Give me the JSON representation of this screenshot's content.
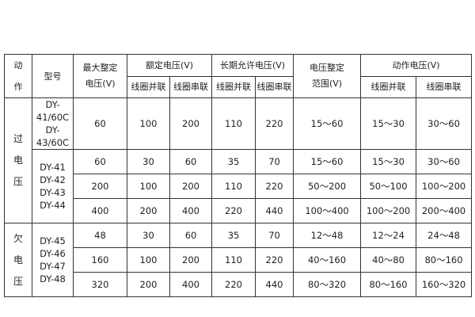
{
  "header": {
    "action": [
      "动",
      "作"
    ],
    "model": "型号",
    "max_setting": [
      "最大整定",
      "电压(V)"
    ],
    "rated_voltage": "额定电压(V)",
    "long_term_voltage": "长期允许电压(V)",
    "setting_range": [
      "电压整定",
      "范围(V)"
    ],
    "operating_voltage": "动作电压(V)",
    "parallel": "线圈并联",
    "series": "线圈串联"
  },
  "groups": [
    {
      "action": [
        "过",
        "电",
        "压"
      ]
    },
    {
      "action": [
        "欠",
        "电",
        "压"
      ]
    }
  ],
  "models": [
    [
      "DY-41/60C",
      "DY-43/60C"
    ],
    [
      "DY-41",
      "DY-42",
      "DY-43",
      "DY-44"
    ],
    [
      "DY-45",
      "DY-46",
      "DY-47",
      "DY-48"
    ]
  ],
  "rows": [
    [
      "60",
      "100",
      "200",
      "110",
      "220",
      "15～60",
      "15～30",
      "30～60"
    ],
    [
      "60",
      "30",
      "60",
      "35",
      "70",
      "15～60",
      "15～30",
      "30～60"
    ],
    [
      "200",
      "100",
      "200",
      "110",
      "220",
      "50～200",
      "50～100",
      "100～200"
    ],
    [
      "400",
      "200",
      "400",
      "220",
      "440",
      "100～400",
      "100～200",
      "200～400"
    ],
    [
      "48",
      "30",
      "60",
      "35",
      "70",
      "12～48",
      "12～24",
      "24～48"
    ],
    [
      "160",
      "100",
      "200",
      "110",
      "220",
      "40～160",
      "40～80",
      "80～160"
    ],
    [
      "320",
      "200",
      "400",
      "220",
      "440",
      "80～320",
      "80～160",
      "160～320"
    ]
  ]
}
